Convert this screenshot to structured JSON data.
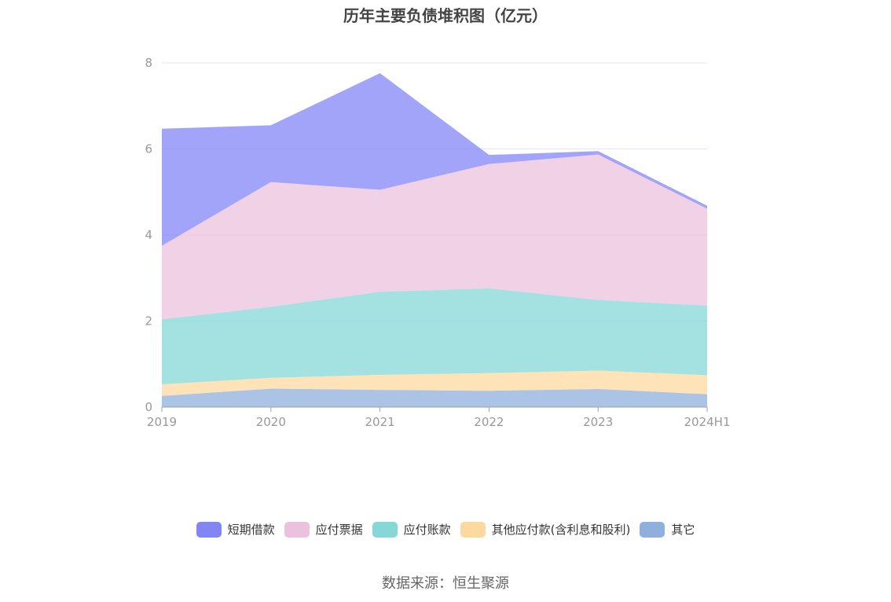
{
  "title": "历年主要负债堆积图（亿元）",
  "source": "数据来源：恒生聚源",
  "chart_data": {
    "type": "area",
    "stacked": true,
    "categories": [
      "2019",
      "2020",
      "2021",
      "2022",
      "2023",
      "2024H1"
    ],
    "ylim": [
      0,
      8
    ],
    "yticks": [
      "0",
      "2",
      "4",
      "6",
      "8"
    ],
    "grid": true,
    "legend_position": "bottom",
    "series": [
      {
        "name": "其它",
        "color": "#8fb0dd",
        "values": [
          0.26,
          0.43,
          0.4,
          0.38,
          0.42,
          0.3
        ]
      },
      {
        "name": "其他应付款(含利息和股利)",
        "color": "#fdd9a0",
        "values": [
          0.27,
          0.25,
          0.35,
          0.41,
          0.43,
          0.44
        ]
      },
      {
        "name": "应付账款",
        "color": "#86d8d8",
        "values": [
          1.51,
          1.65,
          1.93,
          1.97,
          1.64,
          1.62
        ]
      },
      {
        "name": "应付票据",
        "color": "#ebc1dd",
        "values": [
          1.71,
          2.9,
          2.37,
          2.89,
          3.38,
          2.25
        ]
      },
      {
        "name": "短期借款",
        "color": "#8286f5",
        "values": [
          2.72,
          1.32,
          2.71,
          0.21,
          0.08,
          0.07
        ]
      }
    ],
    "legend_order": [
      "短期借款",
      "应付票据",
      "应付账款",
      "其他应付款(含利息和股利)",
      "其它"
    ]
  }
}
